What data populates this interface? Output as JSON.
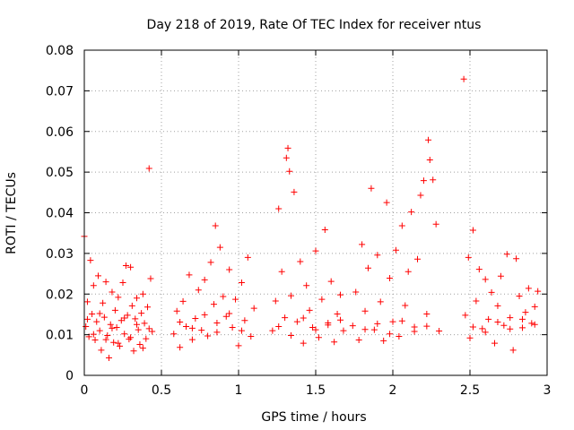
{
  "chart_data": {
    "type": "scatter",
    "title": "Day 218 of 2019, Rate Of TEC Index for receiver ntus",
    "xlabel": "GPS time / hours",
    "ylabel": "ROTI / TECUs",
    "xlim": [
      0,
      3
    ],
    "ylim": [
      0,
      0.08
    ],
    "grid": true,
    "marker": "+",
    "color": "#ff0000",
    "x_ticks": [
      {
        "value": 0,
        "label": "0"
      },
      {
        "value": 0.5,
        "label": "0.5"
      },
      {
        "value": 1,
        "label": "1"
      },
      {
        "value": 1.5,
        "label": "1.5"
      },
      {
        "value": 2,
        "label": "2"
      },
      {
        "value": 2.5,
        "label": "2.5"
      },
      {
        "value": 3,
        "label": "3"
      }
    ],
    "y_ticks": [
      {
        "value": 0,
        "label": "0"
      },
      {
        "value": 0.01,
        "label": "0.01"
      },
      {
        "value": 0.02,
        "label": "0.02"
      },
      {
        "value": 0.03,
        "label": "0.03"
      },
      {
        "value": 0.04,
        "label": "0.04"
      },
      {
        "value": 0.05,
        "label": "0.05"
      },
      {
        "value": 0.06,
        "label": "0.06"
      },
      {
        "value": 0.07,
        "label": "0.07"
      },
      {
        "value": 0.08,
        "label": "0.08"
      }
    ],
    "series": [
      {
        "name": "ROTI",
        "points": [
          [
            0.0,
            0.0342
          ],
          [
            0.01,
            0.012
          ],
          [
            0.02,
            0.0181
          ],
          [
            0.03,
            0.0095
          ],
          [
            0.04,
            0.0283
          ],
          [
            0.05,
            0.0151
          ],
          [
            0.06,
            0.0221
          ],
          [
            0.07,
            0.0087
          ],
          [
            0.08,
            0.0132
          ],
          [
            0.09,
            0.0245
          ],
          [
            0.1,
            0.011
          ],
          [
            0.11,
            0.0062
          ],
          [
            0.12,
            0.0178
          ],
          [
            0.13,
            0.0143
          ],
          [
            0.14,
            0.023
          ],
          [
            0.15,
            0.0098
          ],
          [
            0.16,
            0.0043
          ],
          [
            0.17,
            0.0125
          ],
          [
            0.18,
            0.0205
          ],
          [
            0.19,
            0.0081
          ],
          [
            0.2,
            0.016
          ],
          [
            0.21,
            0.0118
          ],
          [
            0.22,
            0.0192
          ],
          [
            0.23,
            0.0072
          ],
          [
            0.24,
            0.0135
          ],
          [
            0.25,
            0.0228
          ],
          [
            0.26,
            0.0102
          ],
          [
            0.27,
            0.027
          ],
          [
            0.28,
            0.0148
          ],
          [
            0.29,
            0.0089
          ],
          [
            0.3,
            0.0266
          ],
          [
            0.31,
            0.0171
          ],
          [
            0.32,
            0.006
          ],
          [
            0.33,
            0.0139
          ],
          [
            0.34,
            0.019
          ],
          [
            0.35,
            0.0112
          ],
          [
            0.36,
            0.0076
          ],
          [
            0.37,
            0.0153
          ],
          [
            0.38,
            0.02
          ],
          [
            0.39,
            0.0128
          ],
          [
            0.4,
            0.009
          ],
          [
            0.41,
            0.0168
          ],
          [
            0.42,
            0.0509
          ],
          [
            0.43,
            0.0238
          ],
          [
            0.44,
            0.0108
          ],
          [
            0.02,
            0.0138
          ],
          [
            0.06,
            0.0101
          ],
          [
            0.1,
            0.0152
          ],
          [
            0.14,
            0.0088
          ],
          [
            0.18,
            0.0116
          ],
          [
            0.22,
            0.0079
          ],
          [
            0.26,
            0.0141
          ],
          [
            0.3,
            0.0093
          ],
          [
            0.34,
            0.0125
          ],
          [
            0.38,
            0.0067
          ],
          [
            0.42,
            0.0115
          ],
          [
            0.58,
            0.0102
          ],
          [
            0.6,
            0.0158
          ],
          [
            0.62,
            0.0069
          ],
          [
            0.64,
            0.0182
          ],
          [
            0.66,
            0.012
          ],
          [
            0.68,
            0.0247
          ],
          [
            0.7,
            0.0088
          ],
          [
            0.72,
            0.014
          ],
          [
            0.74,
            0.021
          ],
          [
            0.76,
            0.0111
          ],
          [
            0.78,
            0.0235
          ],
          [
            0.8,
            0.0097
          ],
          [
            0.82,
            0.0278
          ],
          [
            0.84,
            0.0175
          ],
          [
            0.85,
            0.0368
          ],
          [
            0.86,
            0.0129
          ],
          [
            0.88,
            0.0315
          ],
          [
            0.9,
            0.0194
          ],
          [
            0.92,
            0.0145
          ],
          [
            0.94,
            0.026
          ],
          [
            0.96,
            0.0118
          ],
          [
            0.98,
            0.0187
          ],
          [
            1.0,
            0.0073
          ],
          [
            1.02,
            0.0228
          ],
          [
            1.04,
            0.0135
          ],
          [
            1.06,
            0.029
          ],
          [
            1.08,
            0.0096
          ],
          [
            1.1,
            0.0165
          ],
          [
            0.62,
            0.0131
          ],
          [
            0.7,
            0.0116
          ],
          [
            0.78,
            0.0149
          ],
          [
            0.86,
            0.0106
          ],
          [
            0.94,
            0.0152
          ],
          [
            1.02,
            0.011
          ],
          [
            1.22,
            0.011
          ],
          [
            1.24,
            0.0183
          ],
          [
            1.26,
            0.041
          ],
          [
            1.28,
            0.0255
          ],
          [
            1.3,
            0.0142
          ],
          [
            1.31,
            0.0535
          ],
          [
            1.32,
            0.0559
          ],
          [
            1.33,
            0.0502
          ],
          [
            1.34,
            0.0196
          ],
          [
            1.36,
            0.0451
          ],
          [
            1.38,
            0.0132
          ],
          [
            1.4,
            0.028
          ],
          [
            1.42,
            0.0079
          ],
          [
            1.44,
            0.0221
          ],
          [
            1.46,
            0.016
          ],
          [
            1.48,
            0.0118
          ],
          [
            1.5,
            0.0306
          ],
          [
            1.52,
            0.0093
          ],
          [
            1.54,
            0.0187
          ],
          [
            1.56,
            0.0358
          ],
          [
            1.58,
            0.0124
          ],
          [
            1.6,
            0.0231
          ],
          [
            1.62,
            0.0082
          ],
          [
            1.64,
            0.0151
          ],
          [
            1.66,
            0.0198
          ],
          [
            1.68,
            0.011
          ],
          [
            1.26,
            0.012
          ],
          [
            1.34,
            0.0098
          ],
          [
            1.42,
            0.0141
          ],
          [
            1.5,
            0.0112
          ],
          [
            1.58,
            0.0129
          ],
          [
            1.66,
            0.0136
          ],
          [
            1.74,
            0.0122
          ],
          [
            1.76,
            0.0205
          ],
          [
            1.78,
            0.0087
          ],
          [
            1.8,
            0.0322
          ],
          [
            1.82,
            0.0158
          ],
          [
            1.84,
            0.0264
          ],
          [
            1.86,
            0.046
          ],
          [
            1.88,
            0.0112
          ],
          [
            1.9,
            0.0296
          ],
          [
            1.92,
            0.0181
          ],
          [
            1.94,
            0.0085
          ],
          [
            1.96,
            0.0425
          ],
          [
            1.98,
            0.0239
          ],
          [
            2.0,
            0.0132
          ],
          [
            2.02,
            0.0308
          ],
          [
            2.04,
            0.0096
          ],
          [
            2.06,
            0.0368
          ],
          [
            2.08,
            0.0172
          ],
          [
            2.1,
            0.0255
          ],
          [
            2.12,
            0.0402
          ],
          [
            2.14,
            0.0119
          ],
          [
            2.16,
            0.0286
          ],
          [
            2.18,
            0.0443
          ],
          [
            2.2,
            0.0479
          ],
          [
            2.22,
            0.0151
          ],
          [
            2.23,
            0.0579
          ],
          [
            2.24,
            0.053
          ],
          [
            2.26,
            0.0481
          ],
          [
            2.28,
            0.0372
          ],
          [
            2.3,
            0.0109
          ],
          [
            1.82,
            0.0113
          ],
          [
            1.9,
            0.0127
          ],
          [
            1.98,
            0.0102
          ],
          [
            2.06,
            0.0134
          ],
          [
            2.14,
            0.0108
          ],
          [
            2.22,
            0.0121
          ],
          [
            2.46,
            0.0729
          ],
          [
            2.47,
            0.0148
          ],
          [
            2.49,
            0.029
          ],
          [
            2.5,
            0.0092
          ],
          [
            2.52,
            0.0357
          ],
          [
            2.54,
            0.0183
          ],
          [
            2.56,
            0.0261
          ],
          [
            2.58,
            0.0115
          ],
          [
            2.6,
            0.0236
          ],
          [
            2.62,
            0.0138
          ],
          [
            2.64,
            0.0204
          ],
          [
            2.66,
            0.0079
          ],
          [
            2.68,
            0.0171
          ],
          [
            2.7,
            0.0244
          ],
          [
            2.72,
            0.0123
          ],
          [
            2.74,
            0.0298
          ],
          [
            2.76,
            0.0142
          ],
          [
            2.78,
            0.0062
          ],
          [
            2.8,
            0.0287
          ],
          [
            2.82,
            0.0195
          ],
          [
            2.84,
            0.0117
          ],
          [
            2.86,
            0.0155
          ],
          [
            2.88,
            0.0214
          ],
          [
            2.9,
            0.0128
          ],
          [
            2.92,
            0.0169
          ],
          [
            2.94,
            0.0207
          ],
          [
            2.52,
            0.0119
          ],
          [
            2.6,
            0.0106
          ],
          [
            2.68,
            0.0131
          ],
          [
            2.76,
            0.0114
          ],
          [
            2.84,
            0.0138
          ],
          [
            2.92,
            0.0125
          ]
        ]
      }
    ]
  }
}
